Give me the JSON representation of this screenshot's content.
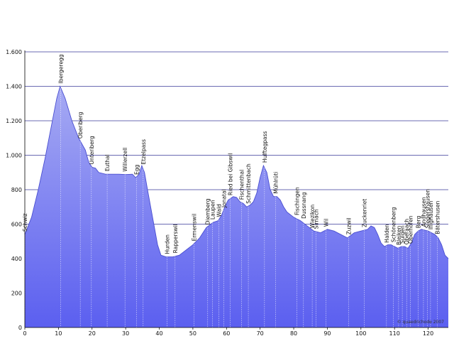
{
  "chart_data": {
    "type": "area",
    "title": "",
    "xlabel": "",
    "ylabel": "",
    "xlim": [
      0,
      126
    ],
    "ylim": [
      0,
      1600
    ],
    "grid": true,
    "x_ticks": [
      0,
      10,
      20,
      30,
      40,
      50,
      60,
      70,
      80,
      90,
      100,
      110,
      120
    ],
    "y_ticks": [
      0,
      200,
      400,
      600,
      800,
      1000,
      1200,
      1400,
      1600
    ],
    "y_tick_labels": [
      "0",
      "200",
      "400",
      "600",
      "800",
      "1.000",
      "1.200",
      "1.400",
      "1.600"
    ],
    "colors": {
      "fill_top": "#a6aaf3",
      "fill_bottom": "#5b5ff0",
      "outline": "#4a4fd0",
      "grid": "#3a3a9a",
      "marker_line": "#ffffff"
    },
    "series": [
      {
        "values": [
          [
            0,
            540
          ],
          [
            2,
            640
          ],
          [
            4,
            800
          ],
          [
            6,
            980
          ],
          [
            8,
            1180
          ],
          [
            9.5,
            1330
          ],
          [
            10.5,
            1400
          ],
          [
            12,
            1330
          ],
          [
            14,
            1200
          ],
          [
            16,
            1100
          ],
          [
            18,
            1030
          ],
          [
            19,
            960
          ],
          [
            20,
            930
          ],
          [
            21,
            925
          ],
          [
            22,
            900
          ],
          [
            24,
            890
          ],
          [
            26,
            890
          ],
          [
            28,
            890
          ],
          [
            30,
            888
          ],
          [
            32,
            890
          ],
          [
            33,
            870
          ],
          [
            34,
            890
          ],
          [
            34.8,
            940
          ],
          [
            35.6,
            900
          ],
          [
            36.5,
            800
          ],
          [
            38,
            640
          ],
          [
            39.5,
            480
          ],
          [
            40.5,
            420
          ],
          [
            42,
            410
          ],
          [
            44,
            410
          ],
          [
            46,
            420
          ],
          [
            48,
            450
          ],
          [
            50,
            480
          ],
          [
            52,
            520
          ],
          [
            54,
            580
          ],
          [
            56,
            610
          ],
          [
            57.5,
            620
          ],
          [
            58.5,
            650
          ],
          [
            59.5,
            700
          ],
          [
            60.5,
            740
          ],
          [
            62,
            760
          ],
          [
            63,
            755
          ],
          [
            64,
            730
          ],
          [
            65,
            720
          ],
          [
            66,
            700
          ],
          [
            67,
            710
          ],
          [
            68,
            730
          ],
          [
            69,
            780
          ],
          [
            70,
            870
          ],
          [
            71,
            940
          ],
          [
            72,
            900
          ],
          [
            73,
            800
          ],
          [
            74,
            760
          ],
          [
            75,
            760
          ],
          [
            76,
            740
          ],
          [
            77,
            700
          ],
          [
            78,
            670
          ],
          [
            80,
            640
          ],
          [
            82,
            620
          ],
          [
            84,
            590
          ],
          [
            86,
            560
          ],
          [
            88,
            550
          ],
          [
            90,
            570
          ],
          [
            92,
            560
          ],
          [
            94,
            540
          ],
          [
            96,
            520
          ],
          [
            98,
            550
          ],
          [
            100,
            560
          ],
          [
            102,
            570
          ],
          [
            103,
            590
          ],
          [
            104,
            580
          ],
          [
            105,
            540
          ],
          [
            106,
            490
          ],
          [
            107,
            470
          ],
          [
            108,
            480
          ],
          [
            109,
            480
          ],
          [
            110,
            470
          ],
          [
            111,
            460
          ],
          [
            112,
            470
          ],
          [
            113,
            470
          ],
          [
            114,
            460
          ],
          [
            115,
            490
          ],
          [
            116,
            540
          ],
          [
            117,
            560
          ],
          [
            118,
            570
          ],
          [
            119,
            565
          ],
          [
            120,
            560
          ],
          [
            121,
            550
          ],
          [
            122,
            540
          ],
          [
            123,
            520
          ],
          [
            124,
            480
          ],
          [
            125,
            420
          ],
          [
            126,
            400
          ]
        ]
      }
    ],
    "waypoints": [
      {
        "name": "Schwiz",
        "x": 0,
        "y": 540
      },
      {
        "name": "Ibergeregg",
        "x": 10.7,
        "y": 1400
      },
      {
        "name": "Oberiberg",
        "x": 16.5,
        "y": 1080
      },
      {
        "name": "Unteriberg",
        "x": 19.8,
        "y": 930
      },
      {
        "name": "Euthal",
        "x": 24.5,
        "y": 890
      },
      {
        "name": "Willerzell",
        "x": 29.8,
        "y": 888
      },
      {
        "name": "Egg",
        "x": 33.2,
        "y": 870
      },
      {
        "name": "Etzelpass",
        "x": 35.2,
        "y": 930
      },
      {
        "name": "Hurden",
        "x": 42.3,
        "y": 410
      },
      {
        "name": "Rapperswil",
        "x": 44.7,
        "y": 415
      },
      {
        "name": "Ermenswil",
        "x": 50.3,
        "y": 485
      },
      {
        "name": "Diemberg",
        "x": 54.4,
        "y": 580
      },
      {
        "name": "Laupen",
        "x": 55.8,
        "y": 610
      },
      {
        "name": "Wald",
        "x": 57.7,
        "y": 625
      },
      {
        "name": "Jonatal",
        "x": 59.2,
        "y": 680
      },
      {
        "name": "Ried bei Gibswil",
        "x": 61.1,
        "y": 750
      },
      {
        "name": "Fischenthal",
        "x": 64.5,
        "y": 725
      },
      {
        "name": "Schmittenbach",
        "x": 66.5,
        "y": 702
      },
      {
        "name": "Hulftegpass",
        "x": 71.3,
        "y": 940
      },
      {
        "name": "Mühlrüti",
        "x": 74.6,
        "y": 760
      },
      {
        "name": "Fischingen",
        "x": 80.9,
        "y": 635
      },
      {
        "name": "Dussnang",
        "x": 82.9,
        "y": 615
      },
      {
        "name": "Wiezikon",
        "x": 85.5,
        "y": 560
      },
      {
        "name": "Sirnach",
        "x": 86.6,
        "y": 555
      },
      {
        "name": "Wil",
        "x": 89.6,
        "y": 568
      },
      {
        "name": "Zuzwil",
        "x": 96.3,
        "y": 522
      },
      {
        "name": "Zuckenriet",
        "x": 101.0,
        "y": 565
      },
      {
        "name": "Halden",
        "x": 107.6,
        "y": 475
      },
      {
        "name": "Schönenberg",
        "x": 109.6,
        "y": 478
      },
      {
        "name": "Bleiken",
        "x": 111.2,
        "y": 462
      },
      {
        "name": "Sulgen",
        "x": 112.3,
        "y": 470
      },
      {
        "name": "Oberaach",
        "x": 113.6,
        "y": 465
      },
      {
        "name": "Oberhofen",
        "x": 114.7,
        "y": 470
      },
      {
        "name": "Berg",
        "x": 117.0,
        "y": 560
      },
      {
        "name": "Andhausen",
        "x": 118.6,
        "y": 568
      },
      {
        "name": "Siegershausen",
        "x": 119.8,
        "y": 560
      },
      {
        "name": "Illighausen",
        "x": 120.7,
        "y": 552
      },
      {
        "name": "Bätershusen",
        "x": 122.7,
        "y": 525
      }
    ],
    "watermark": "© quaedrichode 2007"
  }
}
